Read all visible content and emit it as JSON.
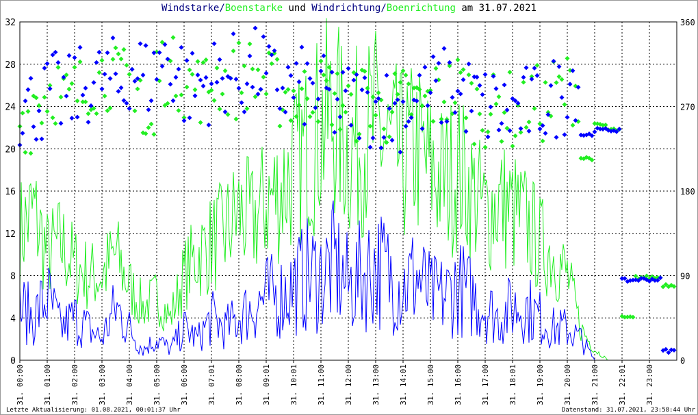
{
  "chart_data": {
    "type": "line",
    "title_parts": {
      "speed": "Windstarke/",
      "gust": "Boenstarke",
      "und": " und ",
      "dir": "Windrichtung/",
      "gustdir": "Boenrichtung",
      "date": " am 31.07.2021"
    },
    "colors": {
      "speed": "#0000ff",
      "gust": "#22ee22",
      "grid": "#000000"
    },
    "y_left": {
      "range": [
        0,
        32
      ],
      "ticks": [
        0,
        4,
        8,
        12,
        16,
        20,
        24,
        28,
        32
      ]
    },
    "y_right": {
      "range": [
        0,
        360
      ],
      "ticks": [
        0,
        90,
        180,
        270,
        360
      ]
    },
    "x_ticks": [
      "31. 00:00",
      "31. 01:00",
      "31. 02:00",
      "31. 03:00",
      "31. 04:00",
      "31. 05:00",
      "31. 06:00",
      "31. 07:01",
      "31. 08:00",
      "31. 09:01",
      "31. 10:01",
      "31. 11:00",
      "31. 12:00",
      "31. 13:00",
      "31. 14:01",
      "31. 15:00",
      "31. 16:00",
      "31. 17:00",
      "31. 18:01",
      "31. 19:00",
      "31. 20:00",
      "31. 21:00",
      "31. 22:01",
      "31. 23:00"
    ],
    "x_hours_step": 0.5,
    "series": [
      {
        "name": "Windstarke",
        "axis": "left",
        "values": [
          5,
          4,
          6,
          3,
          4,
          3,
          2,
          5,
          3,
          1,
          2,
          1,
          3,
          2,
          4,
          3,
          4,
          5,
          6,
          6,
          7,
          8,
          8,
          9,
          7,
          8,
          9,
          8,
          7,
          8,
          6,
          6,
          7,
          6,
          5,
          4,
          5,
          5,
          4,
          3,
          3,
          2,
          0,
          0,
          0,
          0,
          0,
          0
        ]
      },
      {
        "name": "Boenstarke",
        "axis": "left",
        "values": [
          12,
          14,
          10,
          11,
          9,
          8,
          8,
          10,
          7,
          5,
          6,
          4,
          8,
          10,
          11,
          12,
          14,
          13,
          15,
          16,
          18,
          20,
          22,
          23,
          20,
          21,
          22,
          20,
          19,
          20,
          18,
          17,
          18,
          16,
          14,
          15,
          14,
          13,
          11,
          10,
          8,
          3,
          1,
          0,
          0,
          0,
          0,
          0
        ]
      },
      {
        "name": "Windrichtung",
        "axis": "right",
        "values": [
          270,
          275,
          285,
          280,
          290,
          295,
          300,
          290,
          310,
          300,
          320,
          310,
          290,
          295,
          300,
          305,
          300,
          310,
          295,
          290,
          290,
          285,
          280,
          270,
          275,
          270,
          270,
          265,
          270,
          275,
          285,
          290,
          280,
          275,
          270,
          265,
          265,
          270,
          275,
          280,
          300,
          240,
          245,
          245,
          85,
          86,
          86,
          10
        ]
      },
      {
        "name": "Boenrichtung",
        "axis": "right",
        "values": [
          260,
          280,
          290,
          275,
          285,
          300,
          305,
          295,
          300,
          240,
          310,
          305,
          295,
          290,
          300,
          295,
          305,
          300,
          290,
          285,
          280,
          290,
          285,
          275,
          270,
          280,
          265,
          270,
          275,
          270,
          280,
          285,
          290,
          270,
          265,
          270,
          260,
          275,
          270,
          285,
          290,
          215,
          250,
          245,
          45,
          88,
          88,
          80
        ]
      }
    ]
  },
  "footer": {
    "left": "Letzte Aktualisierung: 01.08.2021, 00:01:37 Uhr",
    "right": "Datenstand: 31.07.2021, 23:58:44 Uhr"
  }
}
